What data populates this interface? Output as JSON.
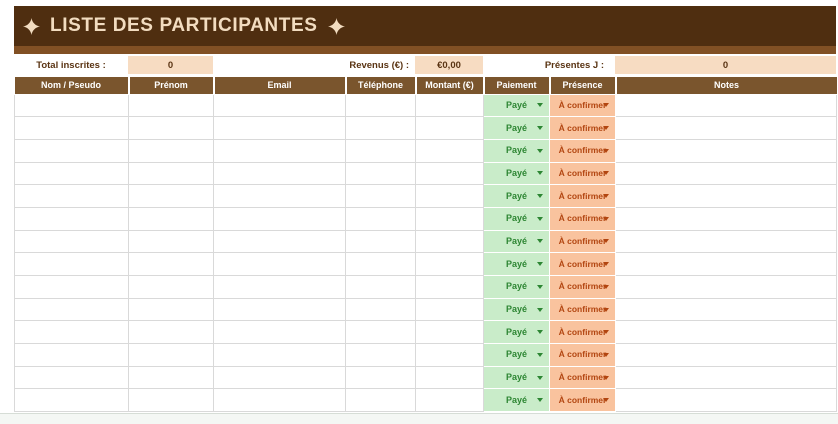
{
  "title": {
    "text": "LISTE DES PARTICIPANTES"
  },
  "icons": {
    "diamond": "four-pointed-star"
  },
  "colors": {
    "banner_bg": "#4f2e10",
    "banner_text": "#f2dcc0",
    "strip_bg": "#815024",
    "header_bg": "#7a552d",
    "header_text": "#ffffff",
    "summary_value_bg": "#f7dcc2",
    "summary_text": "#5a3413",
    "paid_bg": "#c9ecc9",
    "paid_text": "#2d8633",
    "presence_bg": "#f9c39e",
    "presence_text": "#b24510",
    "gridline": "#d9d9d9"
  },
  "summary": {
    "total_label": "Total inscrites :",
    "total_value": "0",
    "revenue_label": "Revenus (€) :",
    "revenue_value": "€0,00",
    "presentes_label": "Présentes J :",
    "presentes_value": "0"
  },
  "table": {
    "columns": [
      "Nom / Pseudo",
      "Prénom",
      "Email",
      "Téléphone",
      "Montant (€)",
      "Paiement",
      "Présence",
      "Notes"
    ],
    "rows": [
      {
        "nom": "",
        "prenom": "",
        "email": "",
        "telephone": "",
        "montant": "",
        "paiement": "Payé",
        "presence": "À confirmer",
        "notes": ""
      },
      {
        "nom": "",
        "prenom": "",
        "email": "",
        "telephone": "",
        "montant": "",
        "paiement": "Payé",
        "presence": "À confirmer",
        "notes": ""
      },
      {
        "nom": "",
        "prenom": "",
        "email": "",
        "telephone": "",
        "montant": "",
        "paiement": "Payé",
        "presence": "À confirmer",
        "notes": ""
      },
      {
        "nom": "",
        "prenom": "",
        "email": "",
        "telephone": "",
        "montant": "",
        "paiement": "Payé",
        "presence": "À confirmer",
        "notes": ""
      },
      {
        "nom": "",
        "prenom": "",
        "email": "",
        "telephone": "",
        "montant": "",
        "paiement": "Payé",
        "presence": "À confirmer",
        "notes": ""
      },
      {
        "nom": "",
        "prenom": "",
        "email": "",
        "telephone": "",
        "montant": "",
        "paiement": "Payé",
        "presence": "À confirmer",
        "notes": ""
      },
      {
        "nom": "",
        "prenom": "",
        "email": "",
        "telephone": "",
        "montant": "",
        "paiement": "Payé",
        "presence": "À confirmer",
        "notes": ""
      },
      {
        "nom": "",
        "prenom": "",
        "email": "",
        "telephone": "",
        "montant": "",
        "paiement": "Payé",
        "presence": "À confirmer",
        "notes": ""
      },
      {
        "nom": "",
        "prenom": "",
        "email": "",
        "telephone": "",
        "montant": "",
        "paiement": "Payé",
        "presence": "À confirmer",
        "notes": ""
      },
      {
        "nom": "",
        "prenom": "",
        "email": "",
        "telephone": "",
        "montant": "",
        "paiement": "Payé",
        "presence": "À confirmer",
        "notes": ""
      },
      {
        "nom": "",
        "prenom": "",
        "email": "",
        "telephone": "",
        "montant": "",
        "paiement": "Payé",
        "presence": "À confirmer",
        "notes": ""
      },
      {
        "nom": "",
        "prenom": "",
        "email": "",
        "telephone": "",
        "montant": "",
        "paiement": "Payé",
        "presence": "À confirmer",
        "notes": ""
      },
      {
        "nom": "",
        "prenom": "",
        "email": "",
        "telephone": "",
        "montant": "",
        "paiement": "Payé",
        "presence": "À confirmer",
        "notes": ""
      },
      {
        "nom": "",
        "prenom": "",
        "email": "",
        "telephone": "",
        "montant": "",
        "paiement": "Payé",
        "presence": "À confirmer",
        "notes": ""
      }
    ]
  }
}
